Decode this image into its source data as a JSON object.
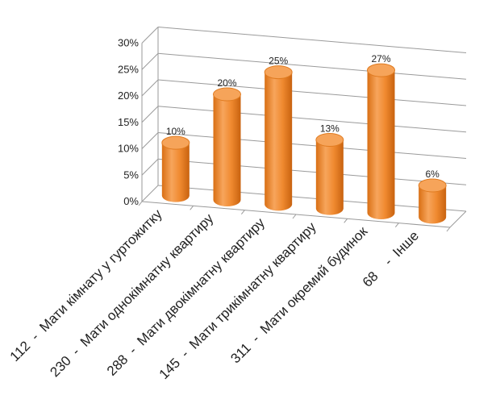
{
  "chart_data": {
    "type": "bar",
    "style": "3d-cylinder",
    "categories": [
      "112  -  Мати кімнату у гуртожитку",
      "230  -  Мати однокімнатну квартиру",
      "288  -  Мати двокімнатну квартиру",
      "145  -  Мати трикімнатну квартиру",
      "311  -  Мати окремий будинок",
      "68    -  Інше"
    ],
    "values": [
      10,
      20,
      25,
      13,
      27,
      6
    ],
    "value_labels": [
      "10%",
      "20%",
      "25%",
      "13%",
      "27%",
      "6%"
    ],
    "yticks": [
      "0%",
      "5%",
      "10%",
      "15%",
      "20%",
      "25%",
      "30%"
    ],
    "ylim": [
      0,
      30
    ],
    "title": "",
    "xlabel": "",
    "ylabel": "",
    "grid": true,
    "legend": "none",
    "bar_color": "#F28A2E",
    "bar_top_color": "#F6A45A"
  }
}
